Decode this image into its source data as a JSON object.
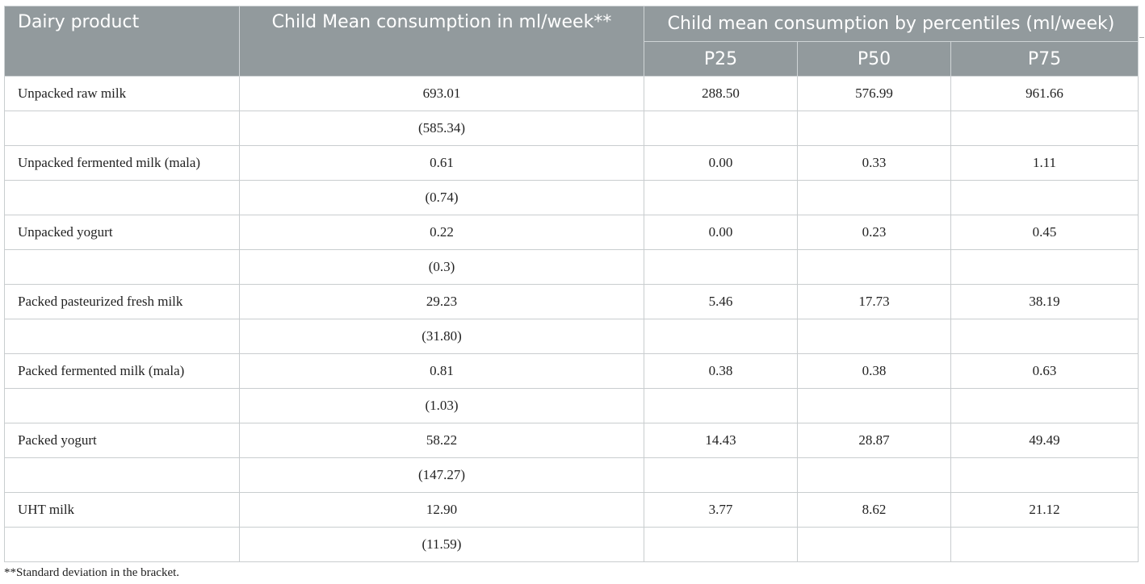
{
  "table": {
    "headers": {
      "product": "Dairy product",
      "mean": "Child Mean consumption in ml/week**",
      "percentiles": "Child mean consumption by percentiles (ml/week)",
      "p25": "P25",
      "p50": "P50",
      "p75": "P75"
    },
    "rows": [
      {
        "product": "Unpacked raw milk",
        "mean": "693.01",
        "p25": "288.50",
        "p50": "576.99",
        "p75": "961.66",
        "sd": "(585.34)"
      },
      {
        "product": "Unpacked fermented milk (mala)",
        "mean": "0.61",
        "p25": "0.00",
        "p50": "0.33",
        "p75": "1.11",
        "sd": "(0.74)"
      },
      {
        "product": "Unpacked yogurt",
        "mean": "0.22",
        "p25": "0.00",
        "p50": "0.23",
        "p75": "0.45",
        "sd": "(0.3)"
      },
      {
        "product": "Packed pasteurized fresh milk",
        "mean": "29.23",
        "p25": "5.46",
        "p50": "17.73",
        "p75": "38.19",
        "sd": "(31.80)"
      },
      {
        "product": "Packed fermented milk (mala)",
        "mean": "0.81",
        "p25": "0.38",
        "p50": "0.38",
        "p75": "0.63",
        "sd": "(1.03)"
      },
      {
        "product": "Packed yogurt",
        "mean": "58.22",
        "p25": "14.43",
        "p50": "28.87",
        "p75": "49.49",
        "sd": "(147.27)"
      },
      {
        "product": "UHT milk",
        "mean": "12.90",
        "p25": "3.77",
        "p50": "8.62",
        "p75": "21.12",
        "sd": "(11.59)"
      }
    ]
  },
  "footnote": "**Standard deviation in the bracket."
}
